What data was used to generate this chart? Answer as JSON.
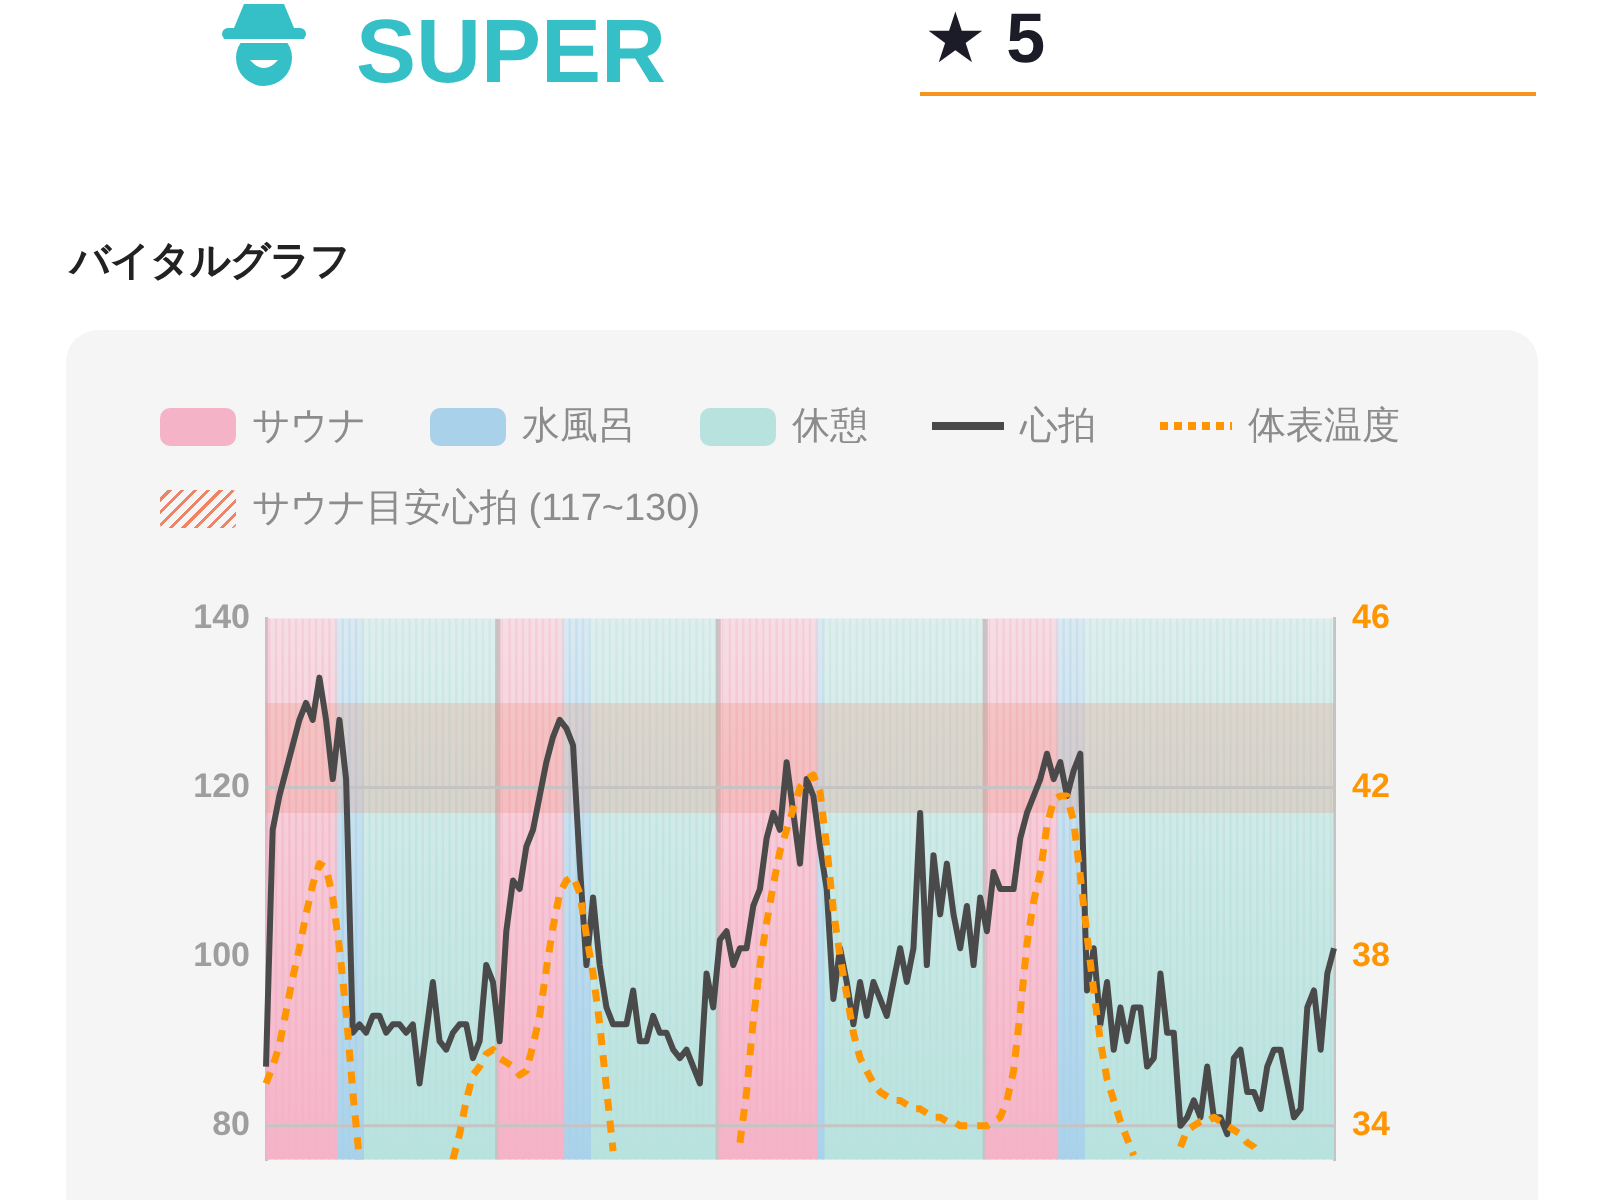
{
  "chart_data": {
    "type": "line",
    "title": "バイタルグラフ",
    "annotations": [
      "SUPER",
      "★ 5"
    ],
    "categories": [
      null,
      null,
      null,
      null,
      null,
      null,
      null,
      null,
      null,
      null,
      null,
      null,
      null,
      null,
      null,
      null,
      null,
      null,
      null,
      null,
      null,
      null,
      null,
      null,
      null,
      null,
      null,
      null,
      null,
      null,
      null,
      null,
      null,
      null,
      null,
      null,
      null,
      null,
      null,
      null,
      null,
      null,
      null,
      null,
      null,
      null,
      null,
      null,
      null,
      null,
      null,
      null,
      null,
      null,
      null,
      null,
      null,
      null,
      null,
      null,
      null,
      null,
      null,
      null,
      null,
      null,
      null,
      null,
      null,
      null,
      null,
      null,
      null,
      null,
      null,
      null,
      null,
      null,
      null,
      null,
      null,
      null,
      null,
      null,
      null,
      null,
      null,
      null,
      null,
      null,
      null,
      null,
      null,
      null,
      null,
      null,
      null,
      null,
      null,
      null,
      null,
      null,
      null,
      null,
      null,
      null,
      null,
      null,
      null,
      null,
      null,
      null,
      null,
      null,
      null,
      null,
      null,
      null,
      null,
      null,
      null,
      null,
      null,
      null,
      null,
      null,
      null,
      null,
      null,
      null,
      null,
      null,
      null,
      null,
      null,
      null,
      null,
      null,
      null,
      null,
      null,
      null,
      null,
      null,
      null,
      null,
      null,
      null,
      null,
      null,
      null,
      null,
      null,
      null,
      null,
      null,
      null,
      null,
      null,
      null,
      null
    ],
    "ylim": [
      76,
      140
    ],
    "yticks": [
      80,
      100,
      120,
      140
    ],
    "y2lim": [
      33.2,
      46
    ],
    "y2ticks": [
      34,
      38,
      42,
      46
    ],
    "legend": "top",
    "ref_lines": [
      {
        "axis": "y",
        "value": 80,
        "color": "#c4c4c4"
      },
      {
        "axis": "y",
        "value": 120,
        "color": "#c4c4c4"
      }
    ],
    "bands": [
      {
        "axis": "y",
        "from": 117,
        "to": 130,
        "label": "サウナ目安心拍 (117~130)",
        "color": "#ee8466"
      }
    ],
    "series": [
      {
        "name": "サウナ",
        "type": "bar",
        "color": "#f5b3c7",
        "values": [
          140,
          140,
          140,
          140,
          140,
          140,
          140,
          140,
          140,
          140,
          140,
          null,
          null,
          null,
          null,
          null,
          null,
          null,
          null,
          null,
          null,
          null,
          null,
          null,
          null,
          null,
          null,
          null,
          null,
          null,
          null,
          null,
          null,
          null,
          null,
          140,
          140,
          140,
          140,
          140,
          140,
          140,
          140,
          140,
          140,
          null,
          null,
          null,
          null,
          null,
          null,
          null,
          null,
          null,
          null,
          null,
          null,
          null,
          null,
          null,
          null,
          null,
          null,
          null,
          null,
          null,
          null,
          null,
          140,
          140,
          140,
          140,
          140,
          140,
          140,
          140,
          140,
          140,
          140,
          140,
          140,
          140,
          140,
          null,
          null,
          null,
          null,
          null,
          null,
          null,
          null,
          null,
          null,
          null,
          null,
          null,
          null,
          null,
          null,
          null,
          null,
          null,
          null,
          null,
          null,
          null,
          null,
          null,
          140,
          140,
          140,
          140,
          140,
          140,
          140,
          140,
          140,
          140,
          140,
          null,
          null,
          null,
          null,
          null,
          null,
          null,
          null,
          null,
          null,
          null,
          null,
          null,
          null,
          null,
          null,
          null,
          null,
          null,
          null,
          null,
          null,
          null,
          null,
          null,
          null,
          null,
          null,
          null,
          null,
          null,
          null,
          null,
          null,
          null,
          null,
          null,
          null,
          null,
          null,
          null,
          null
        ]
      },
      {
        "name": "水風呂",
        "type": "bar",
        "color": "#a9d2ea",
        "values": [
          null,
          null,
          null,
          null,
          null,
          null,
          null,
          null,
          null,
          null,
          null,
          140,
          140,
          140,
          140,
          null,
          null,
          null,
          null,
          null,
          null,
          null,
          null,
          null,
          null,
          null,
          null,
          null,
          null,
          null,
          null,
          null,
          null,
          null,
          null,
          null,
          null,
          null,
          null,
          null,
          null,
          null,
          null,
          null,
          null,
          140,
          140,
          140,
          140,
          null,
          null,
          null,
          null,
          null,
          null,
          null,
          null,
          null,
          null,
          null,
          null,
          null,
          null,
          null,
          null,
          null,
          null,
          null,
          null,
          null,
          null,
          null,
          null,
          null,
          null,
          null,
          null,
          null,
          null,
          null,
          null,
          null,
          null,
          140,
          null,
          null,
          null,
          null,
          null,
          null,
          null,
          null,
          null,
          null,
          null,
          null,
          null,
          null,
          null,
          null,
          null,
          null,
          null,
          null,
          null,
          null,
          null,
          null,
          null,
          null,
          null,
          null,
          null,
          null,
          null,
          null,
          null,
          null,
          null,
          140,
          140,
          140,
          140,
          null,
          null,
          null,
          null,
          null,
          null,
          null,
          null,
          null,
          null,
          null,
          null,
          null,
          null,
          null,
          null,
          null,
          null,
          null,
          null,
          null,
          null,
          null,
          null,
          null,
          null,
          null,
          null,
          null,
          null,
          null,
          null,
          null,
          null,
          null,
          null,
          null,
          null
        ]
      },
      {
        "name": "休憩",
        "type": "bar",
        "color": "#b8e2de",
        "values": [
          null,
          null,
          null,
          null,
          null,
          null,
          null,
          null,
          null,
          null,
          null,
          null,
          null,
          null,
          null,
          140,
          140,
          140,
          140,
          140,
          140,
          140,
          140,
          140,
          140,
          140,
          140,
          140,
          140,
          140,
          140,
          140,
          140,
          140,
          140,
          null,
          null,
          null,
          null,
          null,
          null,
          null,
          null,
          null,
          null,
          null,
          null,
          null,
          null,
          140,
          140,
          140,
          140,
          140,
          140,
          140,
          140,
          140,
          140,
          140,
          140,
          140,
          140,
          140,
          140,
          140,
          140,
          140,
          null,
          null,
          null,
          null,
          null,
          null,
          null,
          null,
          null,
          null,
          null,
          null,
          null,
          null,
          null,
          null,
          140,
          140,
          140,
          140,
          140,
          140,
          140,
          140,
          140,
          140,
          140,
          140,
          140,
          140,
          140,
          140,
          140,
          140,
          140,
          140,
          140,
          140,
          140,
          140,
          null,
          null,
          null,
          null,
          null,
          null,
          null,
          null,
          null,
          null,
          null,
          null,
          null,
          null,
          null,
          140,
          140,
          140,
          140,
          140,
          140,
          140,
          140,
          140,
          140,
          140,
          140,
          140,
          140,
          140,
          140,
          140,
          140,
          140,
          140,
          140,
          140,
          140,
          140,
          140,
          140,
          140,
          140,
          140,
          140,
          140,
          140,
          140,
          140,
          140,
          140,
          140,
          140
        ]
      },
      {
        "name": "心拍",
        "color": "#4a4a4a",
        "values": [
          87,
          115,
          119,
          122,
          125,
          128,
          130,
          128,
          133,
          128,
          121,
          128,
          121,
          91,
          92,
          91,
          93,
          93,
          91,
          92,
          92,
          91,
          92,
          85,
          91,
          97,
          90,
          89,
          91,
          92,
          92,
          88,
          90,
          99,
          97,
          90,
          103,
          109,
          108,
          113,
          115,
          119,
          123,
          126,
          128,
          127,
          125,
          111,
          99,
          107,
          99,
          94,
          92,
          92,
          92,
          96,
          90,
          90,
          93,
          91,
          91,
          89,
          88,
          89,
          87,
          85,
          98,
          94,
          102,
          103,
          99,
          101,
          101,
          106,
          108,
          114,
          117,
          115,
          123,
          117,
          111,
          121,
          119,
          113,
          108,
          95,
          101,
          97,
          92,
          97,
          93,
          97,
          95,
          93,
          97,
          101,
          97,
          101,
          117,
          99,
          112,
          105,
          111,
          105,
          101,
          106,
          99,
          107,
          103,
          110,
          108,
          108,
          108,
          114,
          117,
          119,
          121,
          124,
          121,
          123,
          119,
          122,
          124,
          96,
          101,
          92,
          97,
          89,
          94,
          90,
          94,
          94,
          87,
          88,
          98,
          91,
          91,
          80,
          81,
          83,
          81,
          87,
          81,
          81,
          79,
          88,
          89,
          84,
          84,
          82,
          87,
          89,
          89,
          85,
          81,
          82,
          94,
          96,
          89,
          98,
          101
        ]
      },
      {
        "name": "体表温度",
        "color": "#ff9500",
        "axis": "y2",
        "line_style": "dotted",
        "values": [
          35.0,
          35.4,
          35.9,
          36.7,
          37.5,
          38.2,
          39.0,
          39.7,
          40.2,
          40.1,
          39.4,
          38.2,
          36.7,
          34.8,
          33.2,
          null,
          null,
          null,
          null,
          null,
          null,
          null,
          null,
          null,
          null,
          null,
          null,
          null,
          33.2,
          33.8,
          34.6,
          35.2,
          35.4,
          35.7,
          35.8,
          35.6,
          35.5,
          35.4,
          35.2,
          35.3,
          35.9,
          36.6,
          37.7,
          38.7,
          39.5,
          39.8,
          39.9,
          39.5,
          38.5,
          37.6,
          36.4,
          34.9,
          33.4,
          null,
          null,
          null,
          null,
          null,
          null,
          null,
          null,
          null,
          null,
          null,
          null,
          null,
          null,
          null,
          null,
          null,
          null,
          33.6,
          34.8,
          36.5,
          37.8,
          38.8,
          39.7,
          40.5,
          41.0,
          41.5,
          42.0,
          42.2,
          42.3,
          41.9,
          40.6,
          39.1,
          38.0,
          37.1,
          36.2,
          35.6,
          35.3,
          35.0,
          34.8,
          34.7,
          34.6,
          34.6,
          34.5,
          34.4,
          34.4,
          34.3,
          34.2,
          34.2,
          34.1,
          34.1,
          34.0,
          34.0,
          34.0,
          34.0,
          34.0,
          34.1,
          34.2,
          34.6,
          35.3,
          36.7,
          38.3,
          39.3,
          40.0,
          41.1,
          41.7,
          41.8,
          41.8,
          41.2,
          39.9,
          38.5,
          37.2,
          36.0,
          35.1,
          34.6,
          34.1,
          33.7,
          33.3,
          null,
          null,
          null,
          null,
          null,
          null,
          33.5,
          33.9,
          34.0,
          34.1,
          34.1,
          34.2,
          34.1,
          34.0,
          33.9,
          33.8,
          33.6,
          33.5,
          33.3,
          null,
          null,
          null,
          null,
          null,
          null,
          null,
          null,
          null,
          null,
          null
        ]
      }
    ]
  }
}
